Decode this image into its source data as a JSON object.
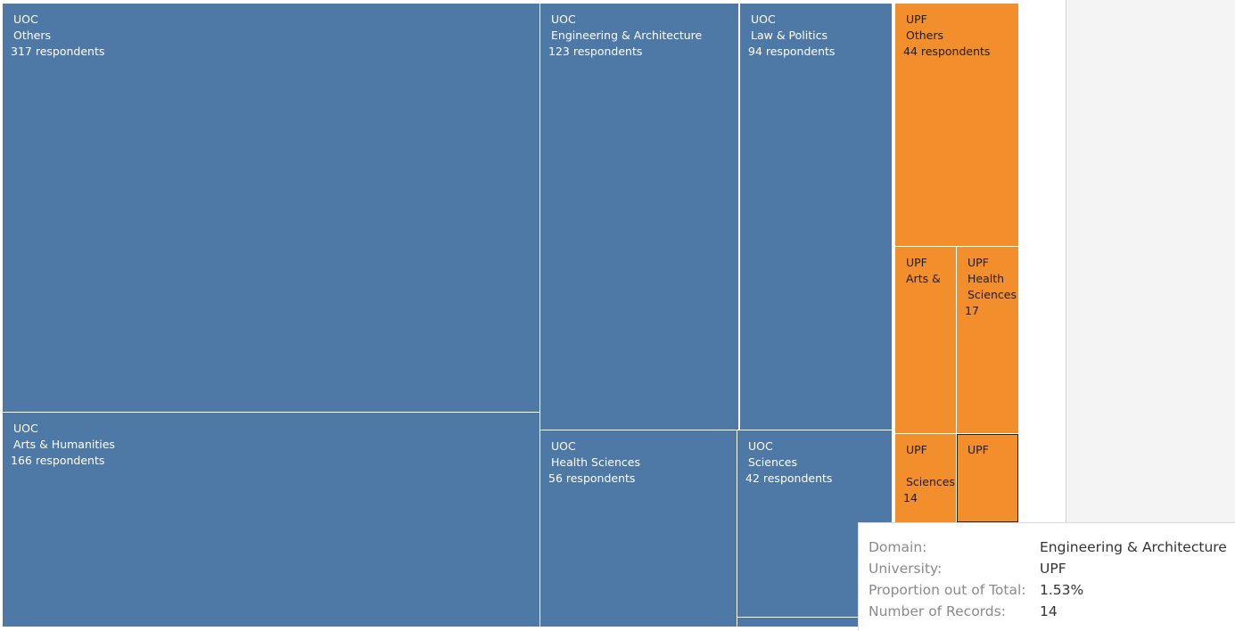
{
  "treemap": {
    "colors": {
      "UOC": "#4e79a7",
      "UPF": "#f28e2b"
    },
    "tiles": [
      {
        "id": "uoc-others",
        "university": "UOC",
        "domain": "Others",
        "count": "317 respondents",
        "color": "blue"
      },
      {
        "id": "uoc-arts",
        "university": "UOC",
        "domain": "Arts & Humanities",
        "count": "166 respondents",
        "color": "blue"
      },
      {
        "id": "uoc-eng",
        "university": "UOC",
        "domain": "Engineering & Architecture",
        "count": "123 respondents",
        "color": "blue"
      },
      {
        "id": "uoc-health",
        "university": "UOC",
        "domain": "Health Sciences",
        "count": "56 respondents",
        "color": "blue"
      },
      {
        "id": "uoc-law",
        "university": "UOC",
        "domain": "Law & Politics",
        "count": "94 respondents",
        "color": "blue"
      },
      {
        "id": "uoc-sci",
        "university": "UOC",
        "domain": "Sciences",
        "count": "42 respondents",
        "color": "blue"
      },
      {
        "id": "upf-others",
        "university": "UPF",
        "domain": "Others",
        "count": "44 respondents",
        "color": "orange"
      },
      {
        "id": "upf-arts",
        "university": "UPF",
        "domain": "Arts &",
        "count": "",
        "color": "orange"
      },
      {
        "id": "upf-health",
        "university": "UPF",
        "domain": "Health\nSciences",
        "count": "17",
        "color": "orange"
      },
      {
        "id": "upf-sci",
        "university": "UPF",
        "domain": "\nSciences",
        "count": "14",
        "color": "orange"
      },
      {
        "id": "upf-eng",
        "university": "UPF",
        "domain": "",
        "count": "",
        "color": "orange"
      }
    ]
  },
  "tooltip": {
    "rows": [
      {
        "key": "Domain:",
        "value": "Engineering & Architecture"
      },
      {
        "key": "University:",
        "value": "UPF"
      },
      {
        "key": "Proportion out of Total:",
        "value": "1.53%"
      },
      {
        "key": "Number of Records:",
        "value": "14"
      }
    ]
  }
}
